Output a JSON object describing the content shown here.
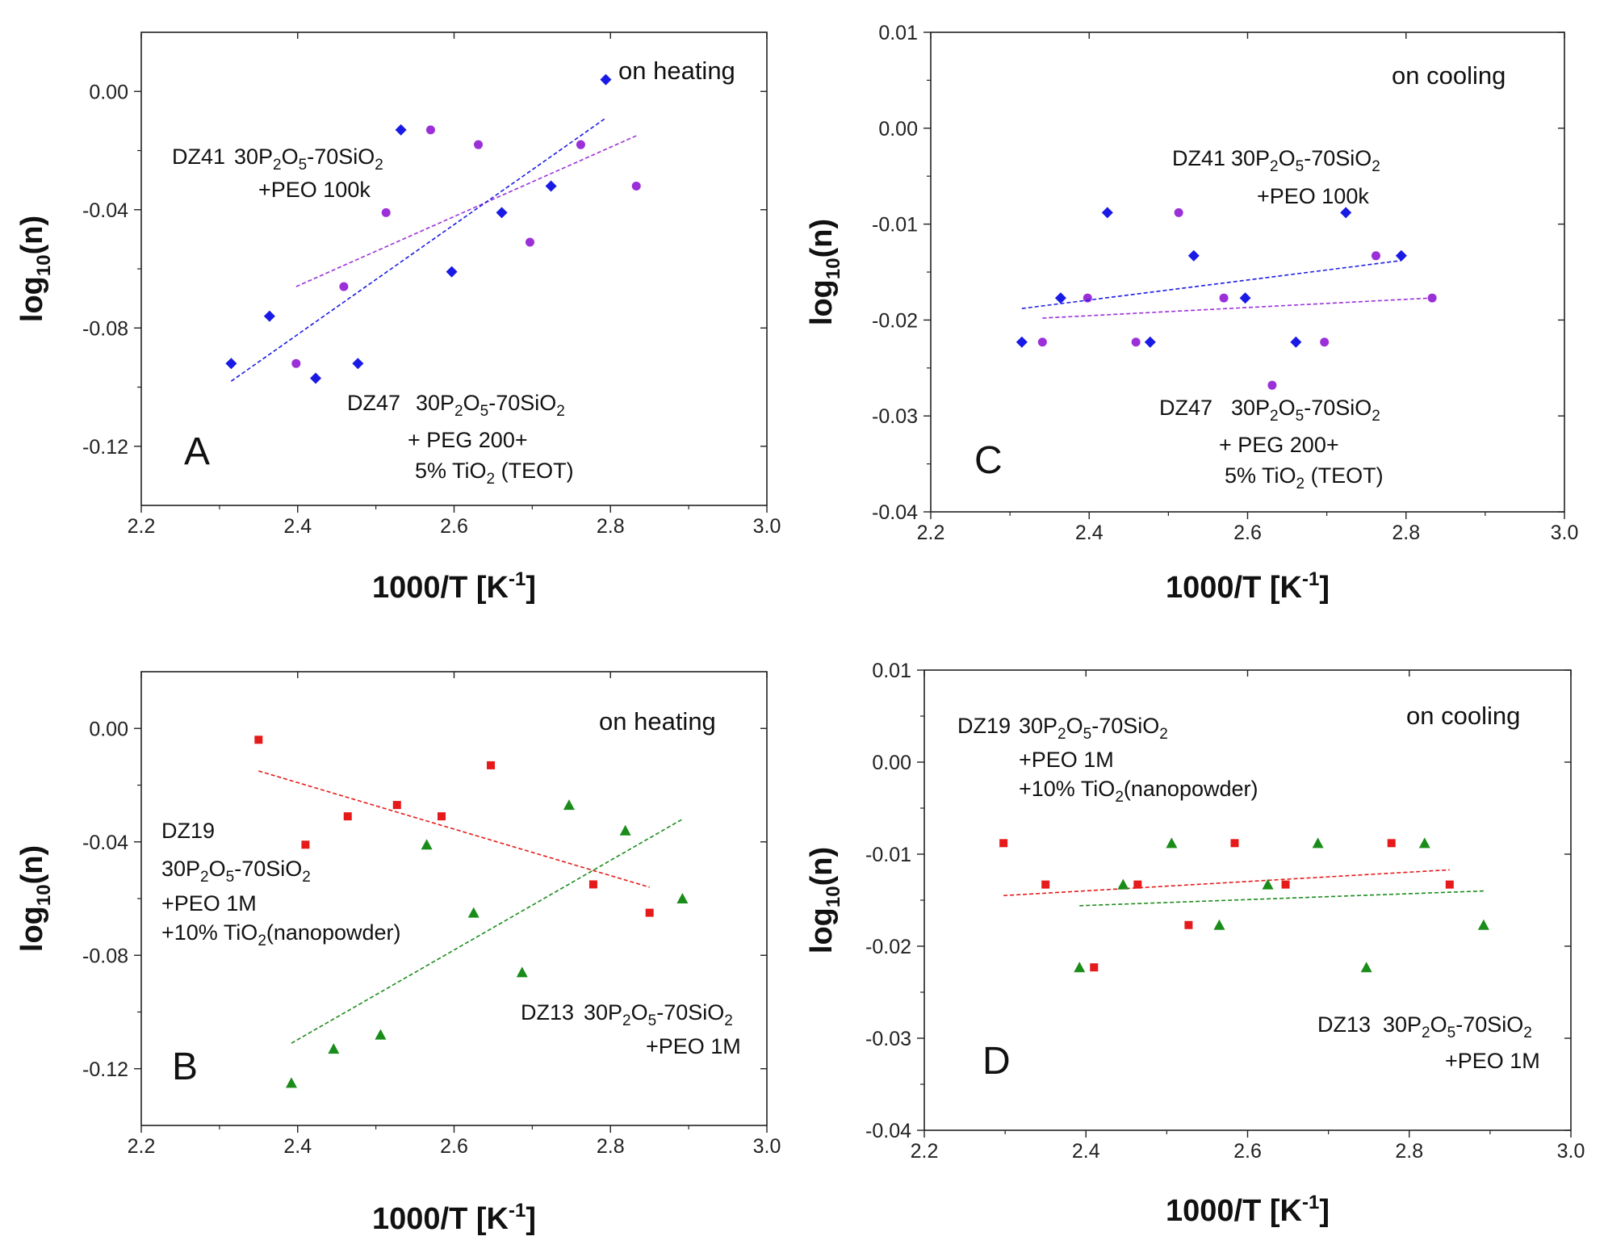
{
  "chart_data": [
    {
      "id": "A",
      "type": "scatter",
      "panel_letter": "A",
      "mode_label": "on heating",
      "xlabel": "1000/T [K-1]",
      "ylabel": "log10(n)",
      "xlim": [
        2.2,
        3.0
      ],
      "ylim": [
        -0.14,
        0.02
      ],
      "xticks": [
        2.2,
        2.4,
        2.6,
        2.8,
        3.0
      ],
      "xtick_labels": [
        "2.2",
        "2.4",
        "2.6",
        "2.8",
        "3.0"
      ],
      "yticks": [
        0.0,
        -0.04,
        -0.08,
        -0.12
      ],
      "ytick_labels": [
        "0.00",
        "-0.04",
        "-0.08",
        "-0.12"
      ],
      "series": [
        {
          "name": "DZ41",
          "label": "DZ41",
          "color": "#9b30d9",
          "marker": "circle",
          "composition": "30P2O5-70SiO2",
          "composition_extra": [
            "+PEO 100k"
          ],
          "points": [
            [
              2.398,
              -0.092
            ],
            [
              2.459,
              -0.066
            ],
            [
              2.513,
              -0.041
            ],
            [
              2.57,
              -0.013
            ],
            [
              2.631,
              -0.018
            ],
            [
              2.697,
              -0.051
            ],
            [
              2.762,
              -0.018
            ],
            [
              2.833,
              -0.032
            ]
          ],
          "fit": [
            [
              2.398,
              -0.066
            ],
            [
              2.833,
              -0.015
            ]
          ]
        },
        {
          "name": "DZ47",
          "label": "DZ47",
          "color": "#1a1ae6",
          "marker": "diamond",
          "composition": "30P2O5-70SiO2",
          "composition_extra": [
            "+ PEG 200+",
            "5% TiO2 (TEOT)"
          ],
          "points": [
            [
              2.315,
              -0.092
            ],
            [
              2.364,
              -0.076
            ],
            [
              2.423,
              -0.097
            ],
            [
              2.477,
              -0.092
            ],
            [
              2.532,
              -0.013
            ],
            [
              2.597,
              -0.061
            ],
            [
              2.661,
              -0.041
            ],
            [
              2.724,
              -0.032
            ],
            [
              2.794,
              0.004
            ]
          ],
          "fit": [
            [
              2.315,
              -0.098
            ],
            [
              2.794,
              -0.009
            ]
          ]
        }
      ]
    },
    {
      "id": "C",
      "type": "scatter",
      "panel_letter": "C",
      "mode_label": "on cooling",
      "xlabel": "1000/T [K-1]",
      "ylabel": "log10(n)",
      "xlim": [
        2.2,
        3.0
      ],
      "ylim": [
        -0.04,
        0.01
      ],
      "xticks": [
        2.2,
        2.4,
        2.6,
        2.8,
        3.0
      ],
      "xtick_labels": [
        "2.2",
        "2.4",
        "2.6",
        "2.8",
        "3.0"
      ],
      "yticks": [
        0.01,
        0.0,
        -0.01,
        -0.02,
        -0.03,
        -0.04
      ],
      "ytick_labels": [
        "0.01",
        "0.00",
        "-0.01",
        "-0.02",
        "-0.03",
        "-0.04"
      ],
      "series": [
        {
          "name": "DZ41",
          "label": "DZ41",
          "color": "#9b30d9",
          "marker": "circle",
          "composition": "30P2O5-70SiO2",
          "composition_extra": [
            "+PEO 100k"
          ],
          "points": [
            [
              2.341,
              -0.0223
            ],
            [
              2.398,
              -0.0177
            ],
            [
              2.459,
              -0.0223
            ],
            [
              2.513,
              -0.0088
            ],
            [
              2.57,
              -0.0177
            ],
            [
              2.631,
              -0.0268
            ],
            [
              2.697,
              -0.0223
            ],
            [
              2.762,
              -0.0133
            ],
            [
              2.833,
              -0.0177
            ]
          ],
          "fit": [
            [
              2.341,
              -0.0198
            ],
            [
              2.833,
              -0.0177
            ]
          ]
        },
        {
          "name": "DZ47",
          "label": "DZ47",
          "color": "#1a1ae6",
          "marker": "diamond",
          "composition": "30P2O5-70SiO2",
          "composition_extra": [
            "+ PEG 200+",
            "5% TiO2 (TEOT)"
          ],
          "points": [
            [
              2.315,
              -0.0223
            ],
            [
              2.364,
              -0.0177
            ],
            [
              2.423,
              -0.0088
            ],
            [
              2.477,
              -0.0223
            ],
            [
              2.532,
              -0.0133
            ],
            [
              2.597,
              -0.0177
            ],
            [
              2.661,
              -0.0223
            ],
            [
              2.724,
              -0.0088
            ],
            [
              2.794,
              -0.0133
            ]
          ],
          "fit": [
            [
              2.315,
              -0.0188
            ],
            [
              2.794,
              -0.0138
            ]
          ]
        }
      ]
    },
    {
      "id": "B",
      "type": "scatter",
      "panel_letter": "B",
      "mode_label": "on heating",
      "xlabel": "1000/T [K-1]",
      "ylabel": "log10(n)",
      "xlim": [
        2.2,
        3.0
      ],
      "ylim": [
        -0.14,
        0.02
      ],
      "xticks": [
        2.2,
        2.4,
        2.6,
        2.8,
        3.0
      ],
      "xtick_labels": [
        "2.2",
        "2.4",
        "2.6",
        "2.8",
        "3.0"
      ],
      "yticks": [
        0.0,
        -0.04,
        -0.08,
        -0.12
      ],
      "ytick_labels": [
        "0.00",
        "-0.04",
        "-0.08",
        "-0.12"
      ],
      "series": [
        {
          "name": "DZ19",
          "label": "DZ19",
          "color": "#e61a1a",
          "marker": "square",
          "composition": "30P2O5-70SiO2",
          "composition_extra": [
            "+PEO 1M",
            "+10% TiO2(nanopowder)"
          ],
          "points": [
            [
              2.35,
              -0.004
            ],
            [
              2.41,
              -0.041
            ],
            [
              2.464,
              -0.031
            ],
            [
              2.527,
              -0.027
            ],
            [
              2.584,
              -0.031
            ],
            [
              2.647,
              -0.013
            ],
            [
              2.778,
              -0.055
            ],
            [
              2.85,
              -0.065
            ]
          ],
          "fit": [
            [
              2.35,
              -0.015
            ],
            [
              2.85,
              -0.056
            ]
          ]
        },
        {
          "name": "DZ13",
          "label": "DZ13",
          "color": "#1a8c1a",
          "marker": "triangle",
          "composition": "30P2O5-70SiO2",
          "composition_extra": [
            "+PEO 1M"
          ],
          "points": [
            [
              2.392,
              -0.125
            ],
            [
              2.446,
              -0.113
            ],
            [
              2.506,
              -0.108
            ],
            [
              2.565,
              -0.041
            ],
            [
              2.625,
              -0.065
            ],
            [
              2.687,
              -0.086
            ],
            [
              2.747,
              -0.027
            ],
            [
              2.819,
              -0.036
            ],
            [
              2.892,
              -0.06
            ]
          ],
          "fit": [
            [
              2.392,
              -0.111
            ],
            [
              2.892,
              -0.032
            ]
          ]
        }
      ]
    },
    {
      "id": "D",
      "type": "scatter",
      "panel_letter": "D",
      "mode_label": "on cooling",
      "xlabel": "1000/T [K-1]",
      "ylabel": "log10(n)",
      "xlim": [
        2.2,
        3.0
      ],
      "ylim": [
        -0.04,
        0.01
      ],
      "xticks": [
        2.2,
        2.4,
        2.6,
        2.8,
        3.0
      ],
      "xtick_labels": [
        "2.2",
        "2.4",
        "2.6",
        "2.8",
        "3.0"
      ],
      "yticks": [
        0.01,
        0.0,
        -0.01,
        -0.02,
        -0.03,
        -0.04
      ],
      "ytick_labels": [
        "0.01",
        "0.00",
        "-0.01",
        "-0.02",
        "-0.03",
        "-0.04"
      ],
      "series": [
        {
          "name": "DZ19",
          "label": "DZ19",
          "color": "#e61a1a",
          "marker": "square",
          "composition": "30P2O5-70SiO2",
          "composition_extra": [
            "+PEO 1M",
            "+10% TiO2(nanopowder)"
          ],
          "points": [
            [
              2.298,
              -0.0088
            ],
            [
              2.35,
              -0.0133
            ],
            [
              2.41,
              -0.0223
            ],
            [
              2.464,
              -0.0133
            ],
            [
              2.527,
              -0.0177
            ],
            [
              2.584,
              -0.0088
            ],
            [
              2.647,
              -0.0133
            ],
            [
              2.778,
              -0.0088
            ],
            [
              2.85,
              -0.0133
            ]
          ],
          "fit": [
            [
              2.298,
              -0.0145
            ],
            [
              2.85,
              -0.0117
            ]
          ]
        },
        {
          "name": "DZ13",
          "label": "DZ13",
          "color": "#1a8c1a",
          "marker": "triangle",
          "composition": "30P2O5-70SiO2",
          "composition_extra": [
            "+PEO 1M"
          ],
          "points": [
            [
              2.392,
              -0.0223
            ],
            [
              2.446,
              -0.0133
            ],
            [
              2.506,
              -0.0088
            ],
            [
              2.565,
              -0.0177
            ],
            [
              2.625,
              -0.0133
            ],
            [
              2.687,
              -0.0088
            ],
            [
              2.747,
              -0.0223
            ],
            [
              2.819,
              -0.0088
            ],
            [
              2.892,
              -0.0177
            ]
          ],
          "fit": [
            [
              2.392,
              -0.0156
            ],
            [
              2.892,
              -0.014
            ]
          ]
        }
      ]
    }
  ]
}
